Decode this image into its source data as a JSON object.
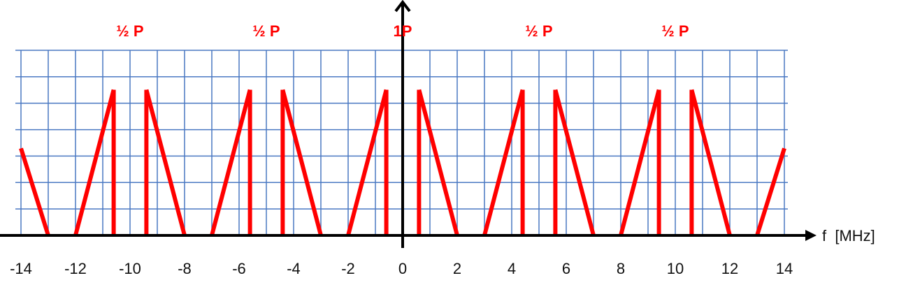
{
  "colors": {
    "grid": "#4a78c2",
    "spectrum": "#ff0000",
    "axis": "#000000",
    "label": "#ff0000"
  },
  "axis": {
    "label": "f  [MHz]",
    "tick_labels": [
      "-14",
      "-12",
      "-10",
      "-8",
      "-6",
      "-4",
      "-2",
      "0",
      "2",
      "4",
      "6",
      "8",
      "10",
      "12",
      "14"
    ]
  },
  "power_labels": [
    {
      "text": "½ P",
      "f": -10
    },
    {
      "text": "½ P",
      "f": -5
    },
    {
      "text": "1P",
      "f": 0
    },
    {
      "text": "½ P",
      "f": 5
    },
    {
      "text": "½ P",
      "f": 10
    }
  ],
  "spectrum": {
    "description_units": "MHz",
    "f_range": [
      -14,
      14
    ],
    "segments": [
      [
        [
          -14,
          0.55
        ],
        [
          -13,
          0
        ]
      ],
      [
        [
          -12,
          0
        ],
        [
          -10.6,
          0.92
        ]
      ],
      [
        [
          -10.6,
          0.92
        ],
        [
          -10.6,
          0
        ]
      ],
      [
        [
          -9.4,
          0
        ],
        [
          -9.4,
          0.92
        ]
      ],
      [
        [
          -9.4,
          0.92
        ],
        [
          -8,
          0
        ]
      ],
      [
        [
          -7,
          0
        ],
        [
          -5.6,
          0.92
        ]
      ],
      [
        [
          -5.6,
          0.92
        ],
        [
          -5.6,
          0
        ]
      ],
      [
        [
          -4.4,
          0
        ],
        [
          -4.4,
          0.92
        ]
      ],
      [
        [
          -4.4,
          0.92
        ],
        [
          -3,
          0
        ]
      ],
      [
        [
          -2,
          0
        ],
        [
          -0.6,
          0.92
        ]
      ],
      [
        [
          -0.6,
          0.92
        ],
        [
          -0.6,
          0
        ]
      ],
      [
        [
          0.6,
          0
        ],
        [
          0.6,
          0.92
        ]
      ],
      [
        [
          0.6,
          0.92
        ],
        [
          2,
          0
        ]
      ],
      [
        [
          3,
          0
        ],
        [
          4.4,
          0.92
        ]
      ],
      [
        [
          4.4,
          0.92
        ],
        [
          4.4,
          0
        ]
      ],
      [
        [
          5.6,
          0
        ],
        [
          5.6,
          0.92
        ]
      ],
      [
        [
          5.6,
          0.92
        ],
        [
          7,
          0
        ]
      ],
      [
        [
          8,
          0
        ],
        [
          9.4,
          0.92
        ]
      ],
      [
        [
          9.4,
          0.92
        ],
        [
          9.4,
          0
        ]
      ],
      [
        [
          10.6,
          0
        ],
        [
          10.6,
          0.92
        ]
      ],
      [
        [
          10.6,
          0.92
        ],
        [
          12,
          0
        ]
      ],
      [
        [
          13,
          0
        ],
        [
          14,
          0.55
        ]
      ]
    ]
  }
}
